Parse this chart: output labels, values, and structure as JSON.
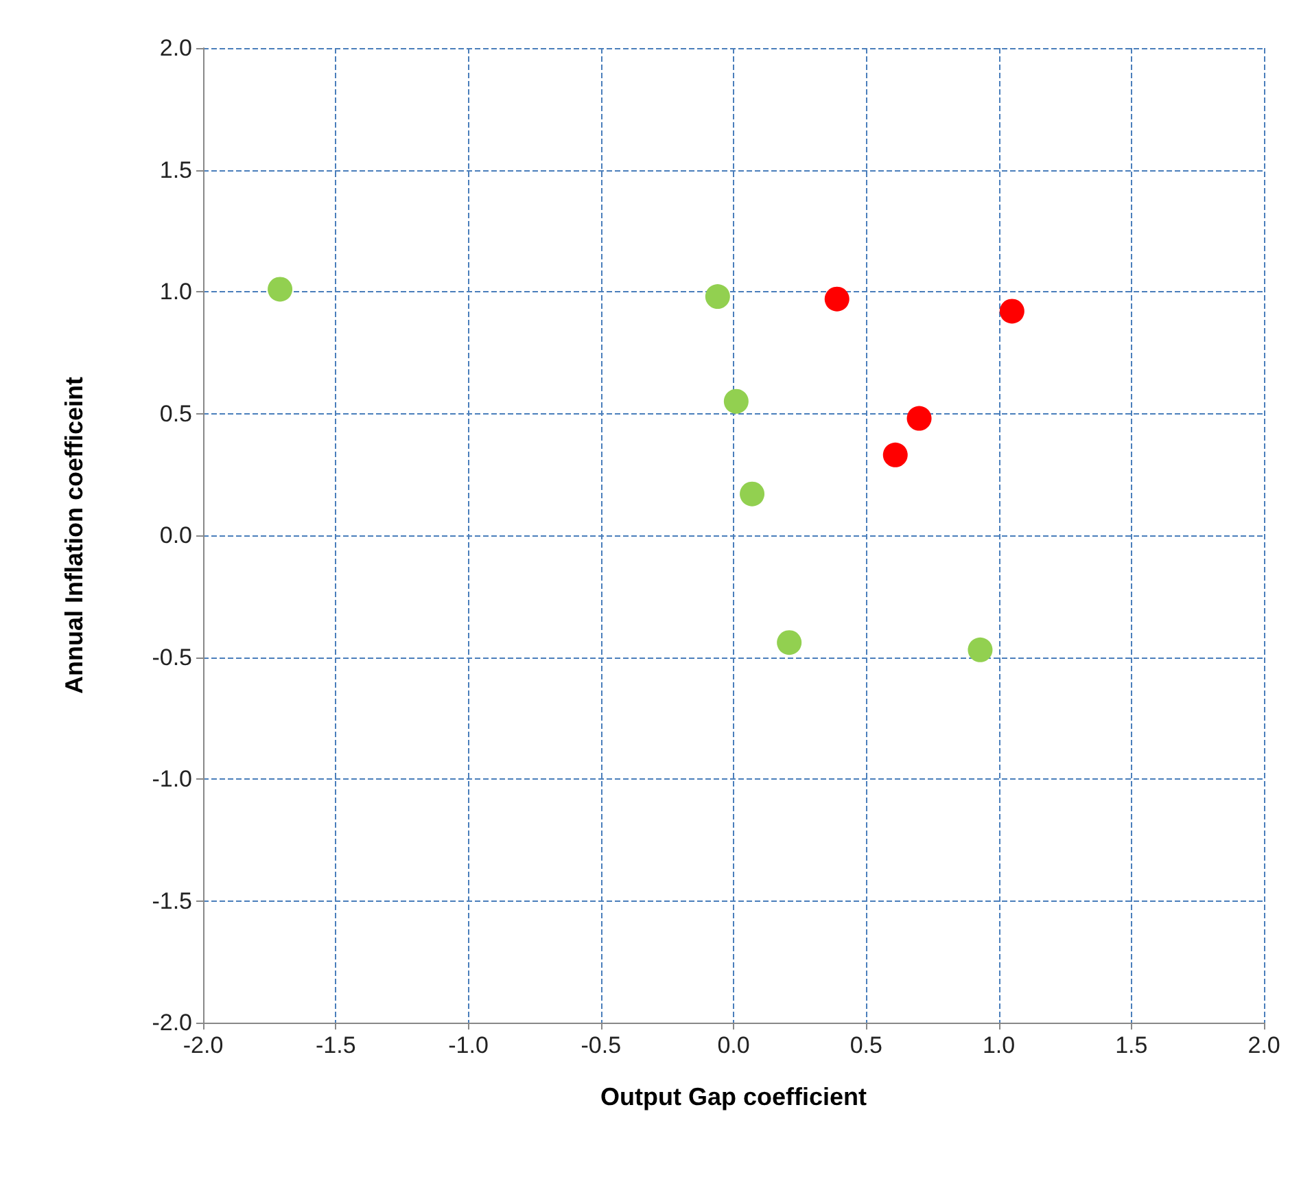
{
  "chart_data": {
    "type": "scatter",
    "xlabel": "Output Gap coefficient",
    "ylabel": "Annual Inflation coefficeint",
    "series": [
      {
        "color": "#92d050",
        "x": [
          -1.71,
          -0.06,
          0.01,
          0.07,
          0.21,
          0.93
        ],
        "values": [
          1.01,
          0.98,
          0.55,
          0.17,
          -0.44,
          -0.47
        ]
      },
      {
        "color": "#ff0000",
        "x": [
          0.39,
          1.05,
          0.7,
          0.61
        ],
        "values": [
          0.97,
          0.92,
          0.48,
          0.33
        ]
      }
    ],
    "xlim": [
      -2,
      2
    ],
    "ylim": [
      -2,
      2
    ],
    "xticks": [
      {
        "value": -2,
        "label": "-2.0"
      },
      {
        "value": -1.5,
        "label": "-1.5"
      },
      {
        "value": -1,
        "label": "-1.0"
      },
      {
        "value": -0.5,
        "label": "-0.5"
      },
      {
        "value": 0,
        "label": "0.0"
      },
      {
        "value": 0.5,
        "label": "0.5"
      },
      {
        "value": 1,
        "label": "1.0"
      },
      {
        "value": 1.5,
        "label": "1.5"
      },
      {
        "value": 2,
        "label": "2.0"
      }
    ],
    "yticks": [
      {
        "value": -2,
        "label": "-2.0"
      },
      {
        "value": -1.5,
        "label": "-1.5"
      },
      {
        "value": -1,
        "label": "-1.0"
      },
      {
        "value": -0.5,
        "label": "-0.5"
      },
      {
        "value": 0,
        "label": "0.0"
      },
      {
        "value": 0.5,
        "label": "0.5"
      },
      {
        "value": 1,
        "label": "1.0"
      },
      {
        "value": 1.5,
        "label": "1.5"
      },
      {
        "value": 2,
        "label": "2.0"
      }
    ],
    "grid": true,
    "marker": "circle"
  }
}
